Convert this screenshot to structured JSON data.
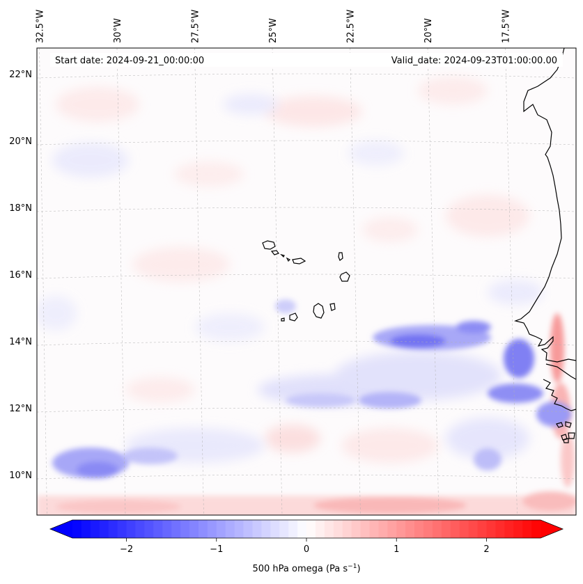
{
  "map": {
    "start_date": "Start date: 2024-09-21_00:00:00",
    "valid_date": "Valid_date: 2024-09-23T01:00:00.00",
    "longitude_ticks": [
      {
        "label": "32.5°W",
        "lon": -32.5
      },
      {
        "label": "30°W",
        "lon": -30
      },
      {
        "label": "27.5°W",
        "lon": -27.5
      },
      {
        "label": "25°W",
        "lon": -25
      },
      {
        "label": "22.5°W",
        "lon": -22.5
      },
      {
        "label": "20°W",
        "lon": -20
      },
      {
        "label": "17.5°W",
        "lon": -17.5
      }
    ],
    "latitude_ticks": [
      {
        "label": "22°N",
        "lat": 22
      },
      {
        "label": "20°N",
        "lat": 20
      },
      {
        "label": "18°N",
        "lat": 18
      },
      {
        "label": "16°N",
        "lat": 16
      },
      {
        "label": "14°N",
        "lat": 14
      },
      {
        "label": "12°N",
        "lat": 12
      },
      {
        "label": "10°N",
        "lat": 10
      }
    ],
    "colors": {
      "negative": "#0000ff",
      "positive": "#ff0000",
      "neutral": "#ffffff",
      "coast": "#000000",
      "grid": "#b0b0b0"
    }
  },
  "colorbar": {
    "label": "500 hPa omega (Pa s",
    "label_exponent": "−1",
    "label_suffix": ")",
    "range": [
      -2.6,
      2.6
    ],
    "ticks": [
      {
        "label": "−2",
        "value": -2
      },
      {
        "label": "−1",
        "value": -1
      },
      {
        "label": "0",
        "value": 0
      },
      {
        "label": "1",
        "value": 1
      },
      {
        "label": "2",
        "value": 2
      }
    ]
  }
}
